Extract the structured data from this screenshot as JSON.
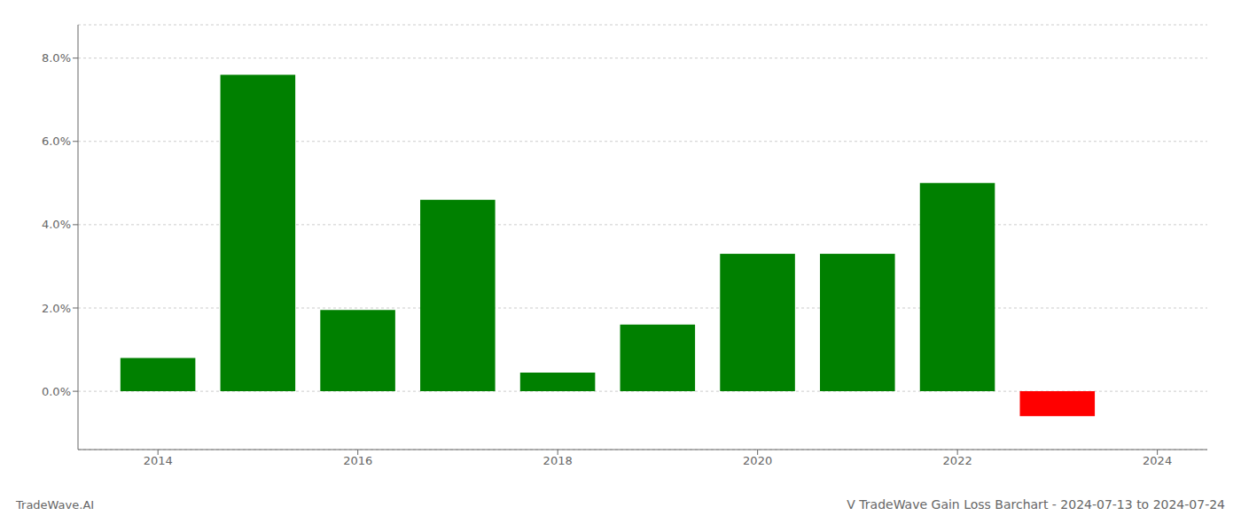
{
  "chart_data": {
    "type": "bar",
    "title": "V TradeWave Gain Loss Barchart - 2024-07-13 to 2024-07-24",
    "annotations": [
      "TradeWave.AI"
    ],
    "x": [
      2014,
      2015,
      2016,
      2017,
      2018,
      2019,
      2020,
      2021,
      2022,
      2023
    ],
    "values": [
      0.008,
      0.076,
      0.0195,
      0.046,
      0.0045,
      0.016,
      0.033,
      0.033,
      0.05,
      -0.006
    ],
    "colors": [
      "#008000",
      "#008000",
      "#008000",
      "#008000",
      "#008000",
      "#008000",
      "#008000",
      "#008000",
      "#008000",
      "#ff0000"
    ],
    "xlim": [
      2013.2,
      2024.5
    ],
    "xticks": [
      2014,
      2016,
      2018,
      2020,
      2022,
      2024
    ],
    "ylim": [
      -0.014,
      0.088
    ],
    "yticks": [
      {
        "value": 0.0,
        "label": "0.0%"
      },
      {
        "value": 0.02,
        "label": "2.0%"
      },
      {
        "value": 0.04,
        "label": "4.0%"
      },
      {
        "value": 0.06,
        "label": "6.0%"
      },
      {
        "value": 0.08,
        "label": "8.0%"
      }
    ],
    "grid": "y"
  }
}
